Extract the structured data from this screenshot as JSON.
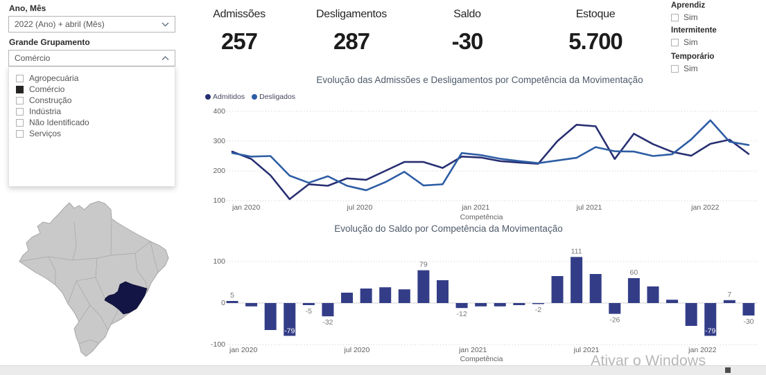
{
  "slicers": {
    "ano_mes": {
      "label": "Ano, Mês",
      "value": "2022 (Ano) + abril (Mês)"
    },
    "grande_grupamento": {
      "label": "Grande Grupamento",
      "value": "Comércio",
      "options": [
        {
          "label": "Agropecuária",
          "checked": false
        },
        {
          "label": "Comércio",
          "checked": true
        },
        {
          "label": "Construção",
          "checked": false
        },
        {
          "label": "Indústria",
          "checked": false
        },
        {
          "label": "Não Identificado",
          "checked": false
        },
        {
          "label": "Serviços",
          "checked": false
        }
      ]
    },
    "aprendiz": {
      "label": "Aprendiz",
      "option": "Sim",
      "checked": false
    },
    "intermitente": {
      "label": "Intermitente",
      "option": "Sim",
      "checked": false
    },
    "temporario": {
      "label": "Temporário",
      "option": "Sim",
      "checked": false
    }
  },
  "kpis": [
    {
      "label": "Admissões",
      "value": "257"
    },
    {
      "label": "Desligamentos",
      "value": "287"
    },
    {
      "label": "Saldo",
      "value": "-30"
    },
    {
      "label": "Estoque",
      "value": "5.700"
    }
  ],
  "map": {
    "highlighted_state": "Minas Gerais",
    "base_color": "#c9c9c9",
    "border_color": "#a6a6a6",
    "highlight_color": "#131644"
  },
  "watermark": "Ativar o Windows",
  "chart_data": [
    {
      "type": "line",
      "title": "Evolução das Admissões e Desligamentos por Competência da Movimentação",
      "xlabel": "Competência",
      "ylim": [
        100,
        400
      ],
      "yticks": [
        100,
        200,
        300,
        400
      ],
      "grid": true,
      "legend_position": "top-left",
      "x": [
        "jan 2020",
        "fev 2020",
        "mar 2020",
        "abr 2020",
        "mai 2020",
        "jun 2020",
        "jul 2020",
        "ago 2020",
        "set 2020",
        "out 2020",
        "nov 2020",
        "dez 2020",
        "jan 2021",
        "fev 2021",
        "mar 2021",
        "abr 2021",
        "mai 2021",
        "jun 2021",
        "jul 2021",
        "ago 2021",
        "set 2021",
        "out 2021",
        "nov 2021",
        "dez 2021",
        "jan 2022",
        "fev 2022",
        "mar 2022",
        "abr 2022"
      ],
      "x_tick_labels": [
        {
          "index": 0,
          "label": "jan 2020"
        },
        {
          "index": 6,
          "label": "jul 2020"
        },
        {
          "index": 12,
          "label": "jan 2021"
        },
        {
          "index": 18,
          "label": "jul 2021"
        },
        {
          "index": 24,
          "label": "jan 2022"
        }
      ],
      "series": [
        {
          "name": "Admitidos",
          "color": "#272f72",
          "values": [
            265,
            240,
            185,
            105,
            155,
            150,
            175,
            170,
            200,
            230,
            230,
            210,
            248,
            245,
            233,
            228,
            224,
            300,
            355,
            350,
            240,
            325,
            290,
            264,
            251,
            291,
            305,
            257
          ]
        },
        {
          "name": "Desligados",
          "color": "#2d5da4",
          "values": [
            260,
            248,
            250,
            184,
            160,
            182,
            150,
            135,
            162,
            197,
            151,
            155,
            260,
            253,
            241,
            233,
            226,
            235,
            244,
            280,
            266,
            265,
            250,
            256,
            306,
            370,
            298,
            287
          ]
        }
      ]
    },
    {
      "type": "bar",
      "title": "Evolução do Saldo por Competência da Movimentação",
      "xlabel": "Competência",
      "ylim": [
        -100,
        100
      ],
      "yticks": [
        100,
        0,
        -100
      ],
      "bar_color": "#333d87",
      "categories": [
        "jan 2020",
        "fev 2020",
        "mar 2020",
        "abr 2020",
        "mai 2020",
        "jun 2020",
        "jul 2020",
        "ago 2020",
        "set 2020",
        "out 2020",
        "nov 2020",
        "dez 2020",
        "jan 2021",
        "fev 2021",
        "mar 2021",
        "abr 2021",
        "mai 2021",
        "jun 2021",
        "jul 2021",
        "ago 2021",
        "set 2021",
        "out 2021",
        "nov 2021",
        "dez 2021",
        "jan 2022",
        "fev 2022",
        "mar 2022",
        "abr 2022"
      ],
      "values": [
        5,
        -8,
        -65,
        -79,
        -5,
        -32,
        25,
        35,
        38,
        33,
        79,
        55,
        -12,
        -8,
        -8,
        -5,
        -2,
        65,
        111,
        70,
        -26,
        60,
        40,
        8,
        -55,
        -79,
        7,
        -30
      ],
      "x_tick_labels": [
        {
          "index": 0,
          "label": "jan 2020"
        },
        {
          "index": 6,
          "label": "jul 2020"
        },
        {
          "index": 12,
          "label": "jan 2021"
        },
        {
          "index": 18,
          "label": "jul 2021"
        },
        {
          "index": 24,
          "label": "jan 2022"
        }
      ],
      "data_labels": [
        {
          "index": 0,
          "text": "5",
          "inside": false
        },
        {
          "index": 3,
          "text": "-79",
          "inside": true
        },
        {
          "index": 4,
          "text": "-5",
          "inside": false
        },
        {
          "index": 5,
          "text": "-32",
          "inside": false
        },
        {
          "index": 10,
          "text": "79",
          "inside": false
        },
        {
          "index": 12,
          "text": "-12",
          "inside": false
        },
        {
          "index": 16,
          "text": "-2",
          "inside": false
        },
        {
          "index": 18,
          "text": "111",
          "inside": false
        },
        {
          "index": 20,
          "text": "-26",
          "inside": false
        },
        {
          "index": 21,
          "text": "60",
          "inside": false
        },
        {
          "index": 25,
          "text": "-79",
          "inside": true
        },
        {
          "index": 26,
          "text": "7",
          "inside": false
        },
        {
          "index": 27,
          "text": "-30",
          "inside": false
        }
      ]
    }
  ]
}
